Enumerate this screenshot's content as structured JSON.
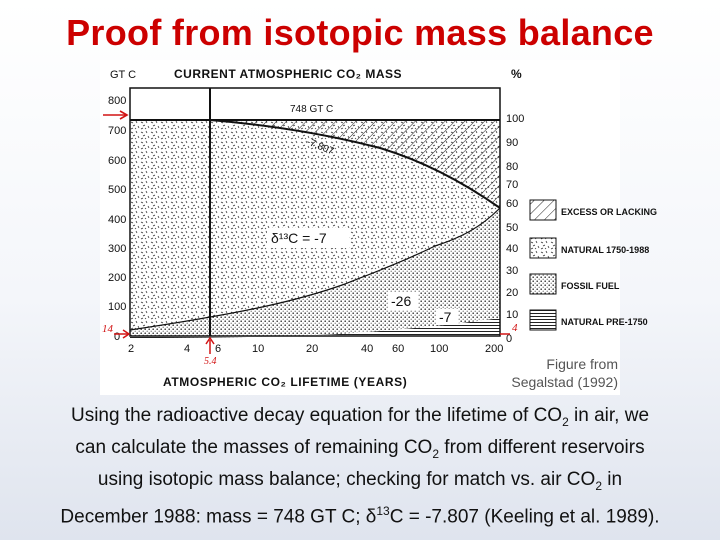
{
  "title": "Proof from isotopic mass balance",
  "figure": {
    "left_axis_title": "GT C",
    "header": "CURRENT ATMOSPHERIC CO₂ MASS",
    "right_axis_title": "%",
    "left_ticks": [
      "800",
      "700",
      "600",
      "500",
      "400",
      "300",
      "200",
      "100",
      "0"
    ],
    "right_ticks": [
      "100",
      "90",
      "80",
      "70",
      "60",
      "50",
      "40",
      "30",
      "20",
      "10",
      "0"
    ],
    "x_ticks": [
      "2",
      "4",
      "6",
      "10",
      "20",
      "40",
      "60",
      "100",
      "200"
    ],
    "x_axis_title": "ATMOSPHERIC CO₂ LIFETIME (YEARS)",
    "mass_label": "748 GT C",
    "curve_label": "-7.807",
    "delta_label": "δ¹³C = -7",
    "label_minus26": "-26",
    "label_minus7": "-7",
    "marker_left": "14",
    "marker_right": "4",
    "marker_bottom": "5.4",
    "legend": [
      {
        "label": "EXCESS OR LACKING",
        "pattern": "hatch"
      },
      {
        "label": "NATURAL 1750-1988",
        "pattern": "speckle"
      },
      {
        "label": "FOSSIL FUEL",
        "pattern": "dots"
      },
      {
        "label": "NATURAL PRE-1750",
        "pattern": "lines"
      }
    ],
    "marker_color": "#d21414"
  },
  "credit": "Figure from Segalstad (1992)",
  "caption": {
    "line1_a": "Using the radioactive decay equation for the lifetime of CO",
    "line1_sub": "2",
    "line1_b": " in air, we",
    "line2_a": "can calculate the masses of remaining CO",
    "line2_sub": "2",
    "line2_b": " from different reservoirs",
    "line3_a": "using isotopic mass balance; checking for match vs. air CO",
    "line3_sub": "2",
    "line3_b": " in",
    "line4_a": "December 1988: mass = 748 GT C; δ",
    "line4_sup": "13",
    "line4_b": "C = -7.807 (Keeling et al. 1989)."
  }
}
